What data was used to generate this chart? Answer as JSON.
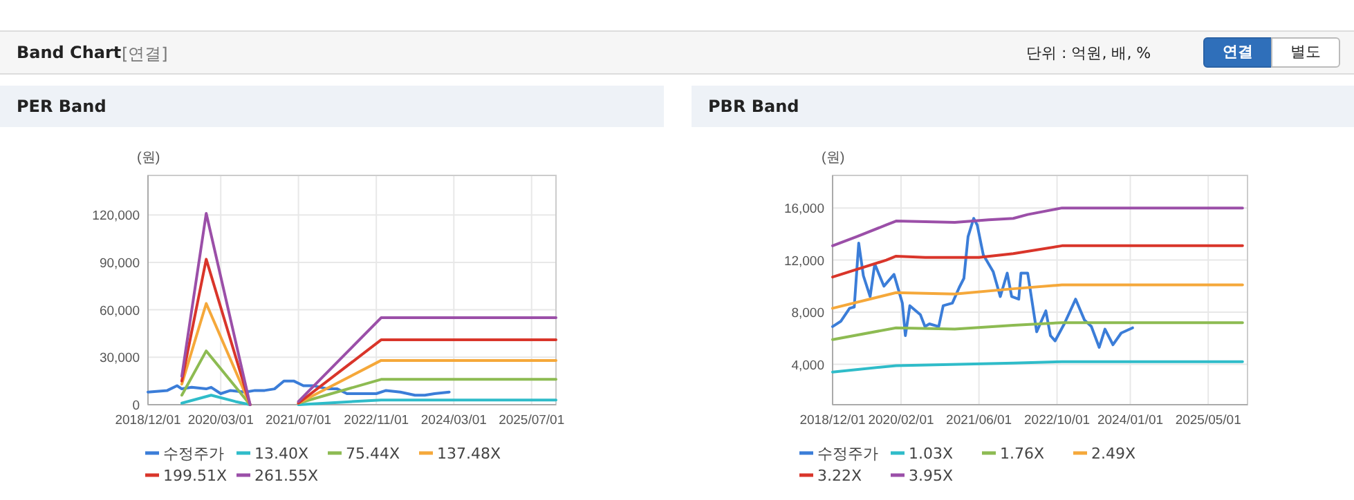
{
  "chart_data": [
    {
      "type": "other",
      "title": "Band Chart",
      "subtitle": "[연결]",
      "annotations": [
        "단위 : 억원, 배, %",
        "연결",
        "별도"
      ]
    },
    {
      "type": "line",
      "title": "PER Band",
      "ylabel": "(원)",
      "xlim": [
        "2018-12-01",
        "2025-12-01"
      ],
      "ylim": [
        0,
        145000
      ],
      "xticks": [
        {
          "value": "2018-12-01",
          "label": "2018/12/01"
        },
        {
          "value": "2020-03-01",
          "label": "2020/03/01"
        },
        {
          "value": "2021-07-01",
          "label": "2021/07/01"
        },
        {
          "value": "2022-11-01",
          "label": "2022/11/01"
        },
        {
          "value": "2024-03-01",
          "label": "2024/03/01"
        },
        {
          "value": "2025-07-01",
          "label": "2025/07/01"
        }
      ],
      "yticks": [
        0,
        {
          "value": 30000,
          "label": "30,000"
        },
        {
          "value": 60000,
          "label": "60,000"
        },
        {
          "value": 90000,
          "label": "90,000"
        },
        {
          "value": 120000,
          "label": "120,000"
        }
      ],
      "grid": true,
      "legend": "bottom",
      "marker": "none",
      "line_style": "solid",
      "series": [
        {
          "name": "수정주가",
          "color": "#3b7dd8",
          "x": [
            "2018-12",
            "2019-04",
            "2019-06",
            "2019-07",
            "2019-09",
            "2019-12",
            "2020-01",
            "2020-03",
            "2020-05",
            "2020-08",
            "2020-10",
            "2020-12",
            "2021-02",
            "2021-04",
            "2021-06",
            "2021-08",
            "2021-10",
            "2022-01",
            "2022-03",
            "2022-05",
            "2022-08",
            "2022-11",
            "2023-01",
            "2023-04",
            "2023-07",
            "2023-09",
            "2023-11",
            "2024-02"
          ],
          "values": [
            8000,
            9000,
            12000,
            10000,
            11000,
            10000,
            11000,
            7000,
            9000,
            8000,
            9000,
            9000,
            10000,
            15000,
            15000,
            12000,
            12000,
            10000,
            10000,
            7000,
            7000,
            7000,
            9000,
            8000,
            6000,
            6000,
            7000,
            8000
          ]
        },
        {
          "name": "13.40X",
          "color": "#2fbcc9",
          "x": [
            "2019-07",
            "2020-01",
            "2020-06",
            "2020-09",
            "2021-03",
            "2021-07",
            "2022-12",
            "2025-12"
          ],
          "values": [
            1000,
            6000,
            2000,
            0,
            null,
            0,
            3000,
            3000
          ]
        },
        {
          "name": "75.44X",
          "color": "#8dbb52",
          "x": [
            "2019-07",
            "2019-12",
            "2020-09",
            "2021-03",
            "2021-07",
            "2022-12",
            "2025-12"
          ],
          "values": [
            6000,
            34000,
            0,
            null,
            1000,
            16000,
            16000
          ]
        },
        {
          "name": "137.48X",
          "color": "#f5a83a",
          "x": [
            "2019-07",
            "2019-12",
            "2020-09",
            "2021-03",
            "2021-07",
            "2022-12",
            "2025-12"
          ],
          "values": [
            13000,
            64000,
            0,
            null,
            1000,
            28000,
            28000
          ]
        },
        {
          "name": "199.51X",
          "color": "#d9352a",
          "x": [
            "2019-07",
            "2019-12",
            "2020-09",
            "2021-03",
            "2021-07",
            "2022-12",
            "2025-12"
          ],
          "values": [
            15000,
            92000,
            0,
            null,
            1000,
            41000,
            41000
          ]
        },
        {
          "name": "261.55X",
          "color": "#9b4fa8",
          "x": [
            "2019-07",
            "2019-12",
            "2020-09",
            "2021-03",
            "2021-07",
            "2022-12",
            "2025-12"
          ],
          "values": [
            18000,
            121000,
            0,
            null,
            2000,
            55000,
            55000
          ]
        }
      ]
    },
    {
      "type": "line",
      "title": "PBR Band",
      "ylabel": "(원)",
      "xlim": [
        "2018-12-01",
        "2026-01-01"
      ],
      "ylim": [
        900,
        18500
      ],
      "xticks": [
        {
          "value": "2018-12-01",
          "label": "2018/12/01"
        },
        {
          "value": "2020-02-01",
          "label": "2020/02/01"
        },
        {
          "value": "2021-06-01",
          "label": "2021/06/01"
        },
        {
          "value": "2022-10-01",
          "label": "2022/10/01"
        },
        {
          "value": "2024-01-01",
          "label": "2024/01/01"
        },
        {
          "value": "2025-05-01",
          "label": "2025/05/01"
        }
      ],
      "yticks": [
        {
          "value": 4000,
          "label": "4,000"
        },
        {
          "value": 8000,
          "label": "8,000"
        },
        {
          "value": 12000,
          "label": "12,000"
        },
        {
          "value": 16000,
          "label": "16,000"
        }
      ],
      "grid": true,
      "legend": "bottom",
      "marker": "none",
      "line_style": "solid",
      "series": [
        {
          "name": "수정주가",
          "color": "#3b7dd8",
          "x": [
            "2018-12-01",
            "2019-01-21",
            "2019-03-17",
            "2019-04-15",
            "2019-05-13",
            "2019-06-11",
            "2019-07-23",
            "2019-08-21",
            "2019-10-17",
            "2019-12-19",
            "2020-02-09",
            "2020-02-28",
            "2020-03-27",
            "2020-06-01",
            "2020-06-29",
            "2020-07-27",
            "2020-09-23",
            "2020-10-21",
            "2020-12-17",
            "2021-01-29",
            "2021-02-27",
            "2021-03-25",
            "2021-04-29",
            "2021-05-21",
            "2021-06-28",
            "2021-08-29",
            "2021-10-12",
            "2021-11-24",
            "2021-12-22",
            "2022-02-04",
            "2022-02-18",
            "2022-04-01",
            "2022-05-27",
            "2022-07-23",
            "2022-08-21",
            "2022-09-19",
            "2022-11-15",
            "2023-01-25",
            "2023-03-21",
            "2023-05-03",
            "2023-06-21",
            "2023-07-27",
            "2023-09-15",
            "2023-11-05",
            "2024-01-15"
          ],
          "values": [
            6900,
            7300,
            8300,
            8400,
            13300,
            10800,
            9200,
            11700,
            10000,
            10900,
            8700,
            6200,
            8500,
            7800,
            6900,
            7100,
            6900,
            8500,
            8700,
            9900,
            10600,
            13800,
            15200,
            14700,
            12400,
            11100,
            9200,
            11000,
            9200,
            9000,
            11000,
            11000,
            6500,
            8100,
            6200,
            5800,
            7100,
            9000,
            7400,
            6900,
            5300,
            6700,
            5500,
            6400,
            6800
          ]
        },
        {
          "name": "1.03X",
          "color": "#2fbcc9",
          "x": [
            "2018-12",
            "2020-01",
            "2022-01",
            "2022-11",
            "2025-12"
          ],
          "values": [
            3400,
            3900,
            4100,
            4200,
            4200
          ]
        },
        {
          "name": "1.76X",
          "color": "#8dbb52",
          "x": [
            "2018-12",
            "2020-01",
            "2021-01",
            "2022-01",
            "2022-11",
            "2025-12"
          ],
          "values": [
            5900,
            6800,
            6700,
            7000,
            7200,
            7200
          ]
        },
        {
          "name": "2.49X",
          "color": "#f5a83a",
          "x": [
            "2018-12",
            "2020-01",
            "2021-01",
            "2022-01",
            "2022-11",
            "2025-12"
          ],
          "values": [
            8300,
            9500,
            9400,
            9800,
            10100,
            10100
          ]
        },
        {
          "name": "3.22X",
          "color": "#d9352a",
          "x": [
            "2018-12",
            "2019-11",
            "2020-01",
            "2020-07",
            "2021-06",
            "2022-01",
            "2022-11",
            "2025-12"
          ],
          "values": [
            10700,
            12000,
            12300,
            12200,
            12200,
            12500,
            13100,
            13100
          ]
        },
        {
          "name": "3.95X",
          "color": "#9b4fa8",
          "x": [
            "2018-12",
            "2019-05",
            "2019-11",
            "2020-01",
            "2021-01",
            "2021-08",
            "2022-01",
            "2022-04",
            "2022-11",
            "2025-12"
          ],
          "values": [
            13100,
            13800,
            14700,
            15000,
            14900,
            15100,
            15200,
            15500,
            16000,
            16000
          ]
        }
      ]
    }
  ]
}
